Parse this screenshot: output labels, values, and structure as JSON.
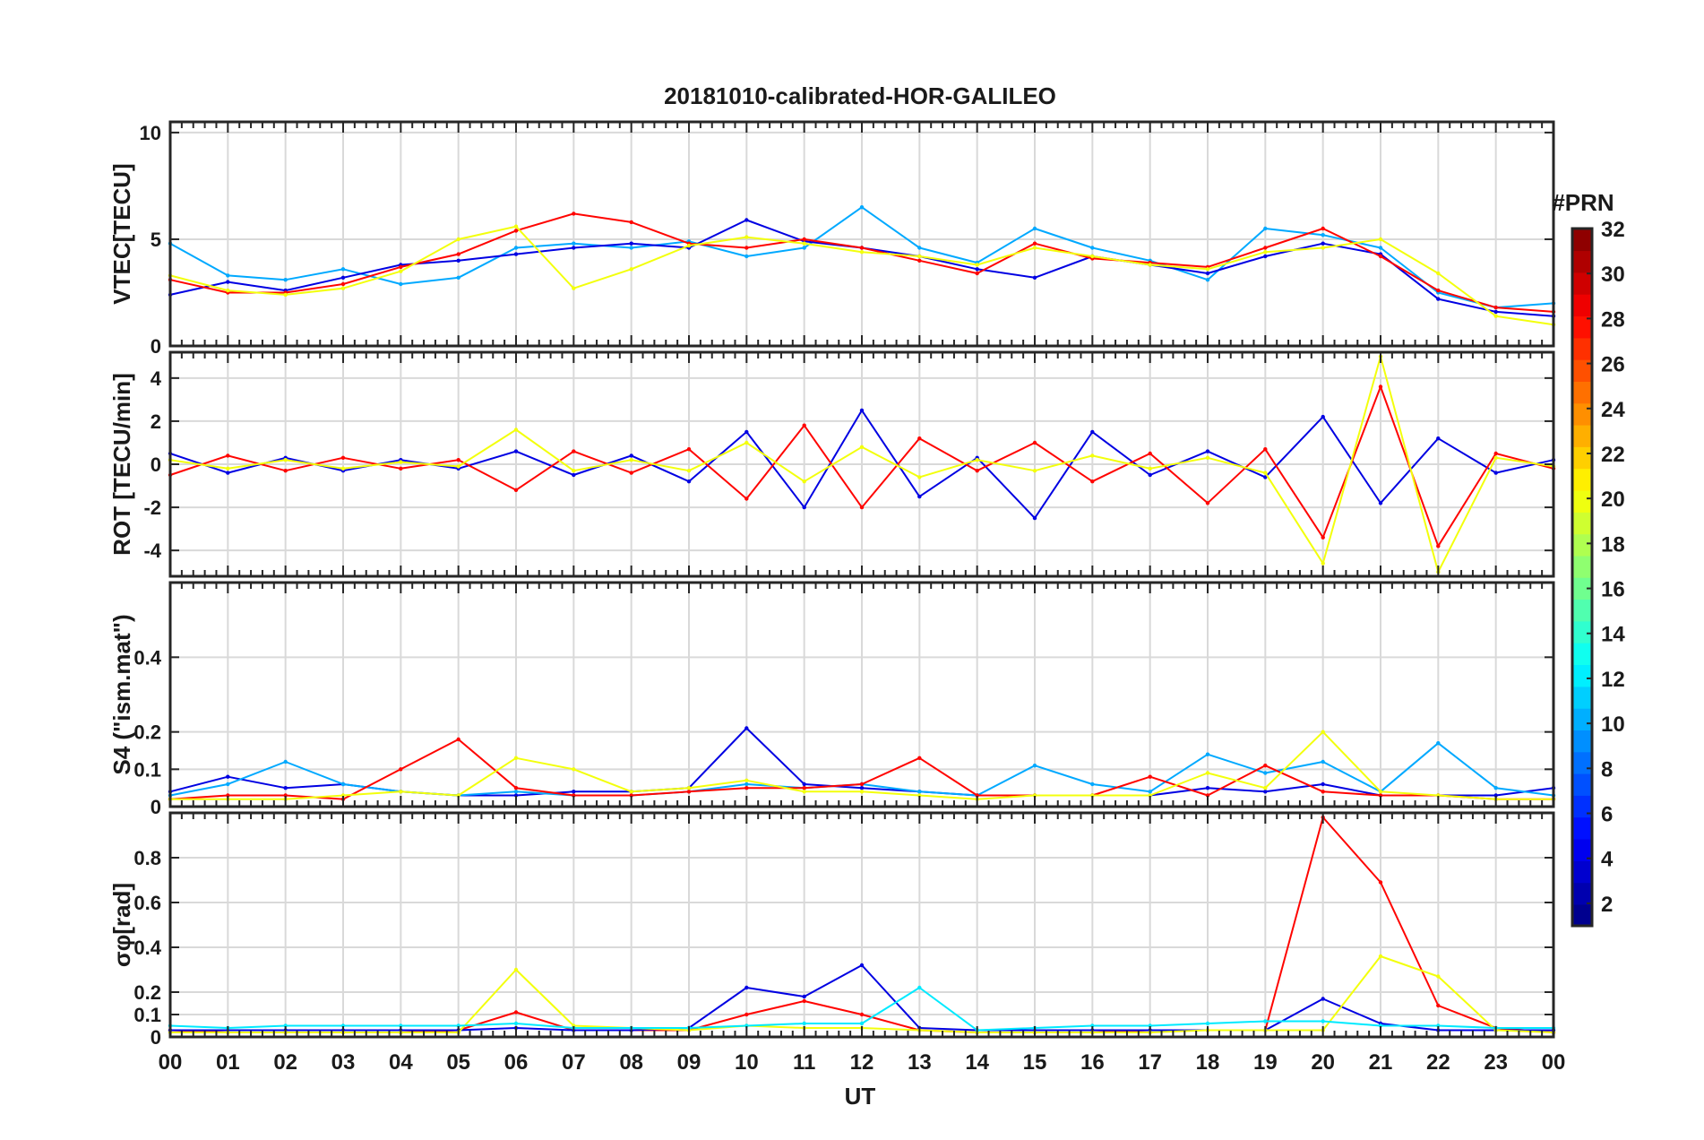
{
  "chart_data": {
    "type": "line",
    "title": "20181010-calibrated-HOR-GALILEO",
    "xlabel": "UT",
    "x_tick_labels": [
      "00",
      "01",
      "02",
      "03",
      "04",
      "05",
      "06",
      "07",
      "08",
      "09",
      "10",
      "11",
      "12",
      "13",
      "14",
      "15",
      "16",
      "17",
      "18",
      "19",
      "20",
      "21",
      "22",
      "23",
      "00"
    ],
    "xlim": [
      0,
      24
    ],
    "colorbar": {
      "title": "#PRN",
      "range": [
        1,
        32
      ],
      "ticks": [
        "2",
        "4",
        "6",
        "8",
        "10",
        "12",
        "14",
        "16",
        "18",
        "20",
        "22",
        "24",
        "26",
        "28",
        "30",
        "32"
      ],
      "colormap": "jet"
    },
    "panels": [
      {
        "ylabel": "VTEC[TECU]",
        "ylim": [
          0,
          10.5
        ],
        "yticks": [
          "0",
          "5",
          "10"
        ],
        "series": [
          {
            "prn": 10,
            "x": [
              0,
              1,
              2,
              3,
              4,
              5,
              6,
              7,
              8,
              9,
              10,
              11,
              12,
              13,
              14,
              15,
              16,
              17,
              18,
              19,
              20,
              21,
              22,
              23,
              24
            ],
            "y": [
              4.8,
              3.3,
              3.1,
              3.6,
              2.9,
              3.2,
              4.6,
              4.8,
              4.6,
              4.9,
              4.2,
              4.6,
              6.5,
              4.6,
              3.9,
              5.5,
              4.6,
              4.0,
              3.1,
              5.5,
              5.2,
              4.6,
              2.5,
              1.8,
              2.0
            ]
          },
          {
            "prn": 4,
            "x": [
              0,
              1,
              2,
              3,
              4,
              5,
              6,
              7,
              8,
              9,
              10,
              11,
              12,
              13,
              14,
              15,
              16,
              17,
              18,
              19,
              20,
              21,
              22,
              23,
              24
            ],
            "y": [
              2.4,
              3.0,
              2.6,
              3.2,
              3.8,
              4.0,
              4.3,
              4.6,
              4.8,
              4.6,
              5.9,
              4.9,
              4.6,
              4.2,
              3.6,
              3.2,
              4.2,
              3.8,
              3.4,
              4.2,
              4.8,
              4.3,
              2.2,
              1.6,
              1.4
            ]
          },
          {
            "prn": 28,
            "x": [
              0,
              1,
              2,
              3,
              4,
              5,
              6,
              7,
              8,
              9,
              10,
              11,
              12,
              13,
              14,
              15,
              16,
              17,
              18,
              19,
              20,
              21,
              22,
              23,
              24
            ],
            "y": [
              3.1,
              2.5,
              2.5,
              2.9,
              3.7,
              4.3,
              5.4,
              6.2,
              5.8,
              4.8,
              4.6,
              5.0,
              4.6,
              4.0,
              3.4,
              4.8,
              4.1,
              3.9,
              3.7,
              4.6,
              5.5,
              4.2,
              2.6,
              1.8,
              1.6
            ]
          },
          {
            "prn": 20,
            "x": [
              0,
              1,
              2,
              3,
              4,
              5,
              6,
              7,
              8,
              9,
              10,
              11,
              12,
              13,
              14,
              15,
              16,
              17,
              18,
              19,
              20,
              21,
              22,
              23,
              24
            ],
            "y": [
              3.3,
              2.6,
              2.4,
              2.7,
              3.5,
              5.0,
              5.6,
              2.7,
              3.6,
              4.7,
              5.1,
              4.8,
              4.4,
              4.2,
              3.8,
              4.6,
              4.2,
              3.8,
              3.6,
              4.4,
              4.6,
              5.0,
              3.4,
              1.4,
              1.0
            ]
          }
        ]
      },
      {
        "ylabel": "ROT [TECU/min]",
        "ylim": [
          -5.2,
          5.2
        ],
        "yticks": [
          "-4",
          "-2",
          "0",
          "2",
          "4"
        ],
        "series": [
          {
            "prn": 4,
            "x": [
              0,
              1,
              2,
              3,
              4,
              5,
              6,
              7,
              8,
              9,
              10,
              11,
              12,
              13,
              14,
              15,
              16,
              17,
              18,
              19,
              20,
              21,
              22,
              23,
              24
            ],
            "y": [
              0.5,
              -0.4,
              0.3,
              -0.3,
              0.2,
              -0.2,
              0.6,
              -0.5,
              0.4,
              -0.8,
              1.5,
              -2.0,
              2.5,
              -1.5,
              0.3,
              -2.5,
              1.5,
              -0.5,
              0.6,
              -0.6,
              2.2,
              -1.8,
              1.2,
              -0.4,
              0.2
            ]
          },
          {
            "prn": 28,
            "x": [
              0,
              1,
              2,
              3,
              4,
              5,
              6,
              7,
              8,
              9,
              10,
              11,
              12,
              13,
              14,
              15,
              16,
              17,
              18,
              19,
              20,
              21,
              22,
              23,
              24
            ],
            "y": [
              -0.5,
              0.4,
              -0.3,
              0.3,
              -0.2,
              0.2,
              -1.2,
              0.6,
              -0.4,
              0.7,
              -1.6,
              1.8,
              -2.0,
              1.2,
              -0.3,
              1.0,
              -0.8,
              0.5,
              -1.8,
              0.7,
              -3.4,
              3.6,
              -3.8,
              0.5,
              -0.2
            ]
          },
          {
            "prn": 20,
            "x": [
              0,
              1,
              2,
              3,
              4,
              5,
              6,
              7,
              8,
              9,
              10,
              11,
              12,
              13,
              14,
              15,
              16,
              17,
              18,
              19,
              20,
              21,
              22,
              23,
              24
            ],
            "y": [
              0.2,
              -0.2,
              0.2,
              -0.2,
              0.1,
              -0.1,
              1.6,
              -0.3,
              0.2,
              -0.3,
              1.0,
              -0.8,
              0.8,
              -0.6,
              0.2,
              -0.3,
              0.4,
              -0.2,
              0.3,
              -0.4,
              -4.6,
              5.0,
              -5.0,
              0.3,
              -0.1
            ]
          }
        ]
      },
      {
        "ylabel": "S4 (\"ism.mat\")",
        "ylim": [
          0,
          0.6
        ],
        "yticks": [
          "0",
          "0.1",
          "0.2",
          "0.4"
        ],
        "series": [
          {
            "prn": 4,
            "x": [
              0,
              1,
              2,
              3,
              4,
              5,
              6,
              7,
              8,
              9,
              10,
              11,
              12,
              13,
              14,
              15,
              16,
              17,
              18,
              19,
              20,
              21,
              22,
              23,
              24
            ],
            "y": [
              0.04,
              0.08,
              0.05,
              0.06,
              0.04,
              0.03,
              0.03,
              0.04,
              0.04,
              0.05,
              0.21,
              0.06,
              0.05,
              0.04,
              0.03,
              0.03,
              0.03,
              0.03,
              0.05,
              0.04,
              0.06,
              0.03,
              0.03,
              0.03,
              0.05
            ]
          },
          {
            "prn": 10,
            "x": [
              0,
              1,
              2,
              3,
              4,
              5,
              6,
              7,
              8,
              9,
              10,
              11,
              12,
              13,
              14,
              15,
              16,
              17,
              18,
              19,
              20,
              21,
              22,
              23,
              24
            ],
            "y": [
              0.03,
              0.06,
              0.12,
              0.06,
              0.04,
              0.03,
              0.04,
              0.03,
              0.03,
              0.04,
              0.06,
              0.05,
              0.06,
              0.04,
              0.03,
              0.11,
              0.06,
              0.04,
              0.14,
              0.09,
              0.12,
              0.04,
              0.17,
              0.05,
              0.03
            ]
          },
          {
            "prn": 28,
            "x": [
              0,
              1,
              2,
              3,
              4,
              5,
              6,
              7,
              8,
              9,
              10,
              11,
              12,
              13,
              14,
              15,
              16,
              17,
              18,
              19,
              20,
              21,
              22,
              23,
              24
            ],
            "y": [
              0.02,
              0.03,
              0.03,
              0.02,
              0.1,
              0.18,
              0.05,
              0.03,
              0.03,
              0.04,
              0.05,
              0.05,
              0.06,
              0.13,
              0.03,
              0.03,
              0.03,
              0.08,
              0.03,
              0.11,
              0.04,
              0.03,
              0.03,
              0.02,
              0.02
            ]
          },
          {
            "prn": 20,
            "x": [
              0,
              1,
              2,
              3,
              4,
              5,
              6,
              7,
              8,
              9,
              10,
              11,
              12,
              13,
              14,
              15,
              16,
              17,
              18,
              19,
              20,
              21,
              22,
              23,
              24
            ],
            "y": [
              0.02,
              0.02,
              0.02,
              0.03,
              0.04,
              0.03,
              0.13,
              0.1,
              0.04,
              0.05,
              0.07,
              0.04,
              0.04,
              0.03,
              0.02,
              0.03,
              0.03,
              0.03,
              0.09,
              0.05,
              0.2,
              0.04,
              0.03,
              0.02,
              0.02
            ]
          }
        ]
      },
      {
        "ylabel": "σφ[rad]",
        "ylim": [
          0,
          1.0
        ],
        "yticks": [
          "0",
          "0.1",
          "0.2",
          "0.4",
          "0.6",
          "0.8"
        ],
        "series": [
          {
            "prn": 28,
            "x": [
              0,
              1,
              2,
              3,
              4,
              5,
              6,
              7,
              8,
              9,
              10,
              11,
              12,
              13,
              14,
              15,
              16,
              17,
              18,
              19,
              20,
              21,
              22,
              23,
              24
            ],
            "y": [
              0.03,
              0.02,
              0.02,
              0.02,
              0.02,
              0.03,
              0.11,
              0.03,
              0.03,
              0.03,
              0.1,
              0.16,
              0.1,
              0.03,
              0.02,
              0.02,
              0.02,
              0.03,
              0.03,
              0.03,
              0.98,
              0.69,
              0.14,
              0.04,
              0.02
            ]
          },
          {
            "prn": 4,
            "x": [
              0,
              1,
              2,
              3,
              4,
              5,
              6,
              7,
              8,
              9,
              10,
              11,
              12,
              13,
              14,
              15,
              16,
              17,
              18,
              19,
              20,
              21,
              22,
              23,
              24
            ],
            "y": [
              0.03,
              0.03,
              0.03,
              0.03,
              0.03,
              0.03,
              0.04,
              0.03,
              0.03,
              0.04,
              0.22,
              0.18,
              0.32,
              0.04,
              0.03,
              0.03,
              0.03,
              0.03,
              0.03,
              0.03,
              0.17,
              0.06,
              0.03,
              0.03,
              0.03
            ]
          },
          {
            "prn": 20,
            "x": [
              0,
              1,
              2,
              3,
              4,
              5,
              6,
              7,
              8,
              9,
              10,
              11,
              12,
              13,
              14,
              15,
              16,
              17,
              18,
              19,
              20,
              21,
              22,
              23,
              24
            ],
            "y": [
              0.02,
              0.02,
              0.02,
              0.02,
              0.02,
              0.02,
              0.3,
              0.05,
              0.04,
              0.03,
              0.05,
              0.04,
              0.04,
              0.03,
              0.02,
              0.02,
              0.02,
              0.02,
              0.03,
              0.03,
              0.03,
              0.36,
              0.27,
              0.03,
              0.02
            ]
          },
          {
            "prn": 12,
            "x": [
              0,
              1,
              2,
              3,
              4,
              5,
              6,
              7,
              8,
              9,
              10,
              11,
              12,
              13,
              14,
              15,
              16,
              17,
              18,
              19,
              20,
              21,
              22,
              23,
              24
            ],
            "y": [
              0.05,
              0.04,
              0.05,
              0.05,
              0.05,
              0.05,
              0.06,
              0.04,
              0.04,
              0.04,
              0.05,
              0.06,
              0.06,
              0.22,
              0.03,
              0.04,
              0.05,
              0.05,
              0.06,
              0.07,
              0.07,
              0.05,
              0.05,
              0.04,
              0.04
            ]
          }
        ]
      }
    ]
  }
}
